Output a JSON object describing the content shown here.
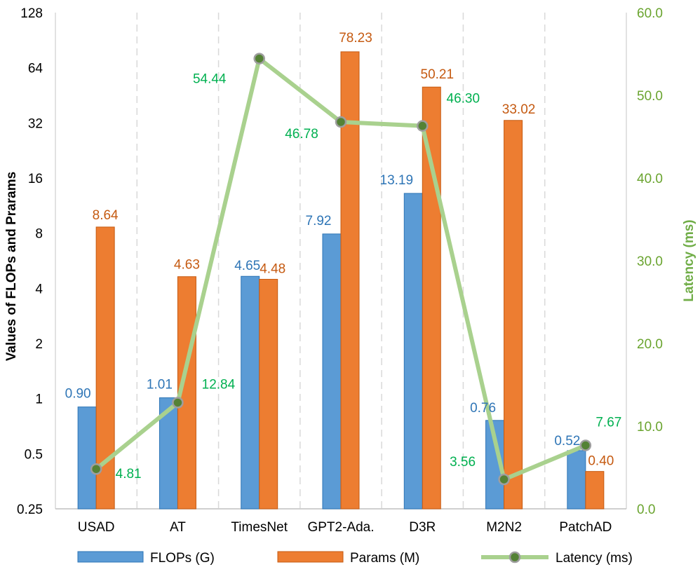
{
  "chart_data": {
    "type": "bar",
    "categories": [
      "USAD",
      "AT",
      "TimesNet",
      "GPT2-Ada.",
      "D3R",
      "M2N2",
      "PatchAD"
    ],
    "series": [
      {
        "name": "FLOPs (G)",
        "type": "bar",
        "axis": "left",
        "color": "#5b9bd5",
        "values": [
          0.9,
          1.01,
          4.65,
          7.92,
          13.19,
          0.76,
          0.52
        ],
        "labels": [
          "0.90",
          "1.01",
          "4.65",
          "7.92",
          "13.19",
          "0.76",
          "0.52"
        ]
      },
      {
        "name": "Params (M)",
        "type": "bar",
        "axis": "left",
        "color": "#ed7d31",
        "values": [
          8.64,
          4.63,
          4.48,
          78.23,
          50.21,
          33.02,
          0.4
        ],
        "labels": [
          "8.64",
          "4.63",
          "4.48",
          "78.23",
          "50.21",
          "33.02",
          "0.40"
        ]
      },
      {
        "name": "Latency (ms)",
        "type": "line",
        "axis": "right",
        "color": "#a9d18e",
        "marker_color": "#548235",
        "values": [
          4.81,
          12.84,
          54.44,
          46.78,
          46.3,
          3.56,
          7.67
        ],
        "labels": [
          "4.81",
          "12.84",
          "54.44",
          "46.78",
          "46.30",
          "3.56",
          "7.67"
        ]
      }
    ],
    "ylabel_left": "Values of FLOPs and Prarams",
    "ylabel_right": "Latency (ms)",
    "y_left_scale": "log2",
    "y_left_range": [
      0.25,
      128
    ],
    "y_left_ticks": [
      "0.25",
      "0.5",
      "1",
      "2",
      "4",
      "8",
      "16",
      "32",
      "64",
      "128"
    ],
    "y_right_range": [
      0,
      60
    ],
    "y_right_ticks": [
      "0.0",
      "10.0",
      "20.0",
      "30.0",
      "40.0",
      "50.0",
      "60.0"
    ],
    "grid": "vertical dashed",
    "legend_position": "bottom"
  }
}
